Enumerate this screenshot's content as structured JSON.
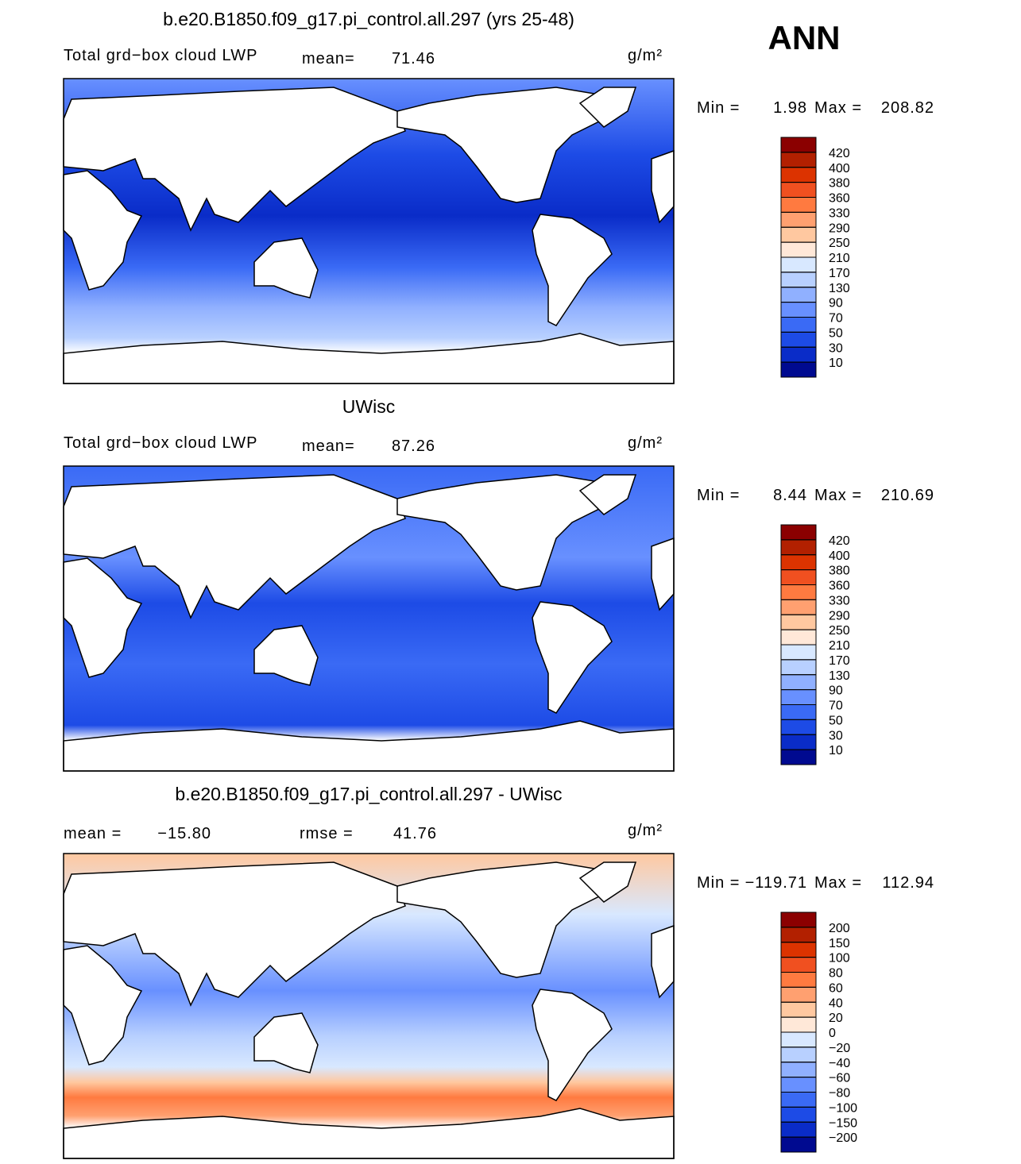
{
  "ann": "ANN",
  "panels": [
    {
      "title": "b.e20.B1850.f09_g17.pi_control.all.297 (yrs 25-48)",
      "left_label": "Total grd−box cloud LWP",
      "stat1_label": "mean=",
      "stat1": 71.46,
      "units": "g/m²",
      "min_label": "Min =",
      "min": 1.98,
      "max_label": "Max =",
      "max": 208.82,
      "levels": [
        420,
        400,
        380,
        360,
        330,
        290,
        250,
        210,
        170,
        130,
        90,
        70,
        50,
        30,
        10
      ],
      "colors": [
        "#8b0000",
        "#b22000",
        "#dc3300",
        "#f05020",
        "#ff7a40",
        "#ffa070",
        "#ffc8a0",
        "#ffe8d8",
        "#d8e8ff",
        "#b8d0ff",
        "#90b0ff",
        "#6890ff",
        "#3a6af5",
        "#1d4be6",
        "#0a2cc8",
        "#000a90"
      ]
    },
    {
      "title": "UWisc",
      "left_label": "Total grd−box cloud LWP",
      "stat1_label": "mean=",
      "stat1": 87.26,
      "units": "g/m²",
      "min_label": "Min =",
      "min": 8.44,
      "max_label": "Max =",
      "max": 210.69,
      "levels": [
        420,
        400,
        380,
        360,
        330,
        290,
        250,
        210,
        170,
        130,
        90,
        70,
        50,
        30,
        10
      ],
      "colors": [
        "#8b0000",
        "#b22000",
        "#dc3300",
        "#f05020",
        "#ff7a40",
        "#ffa070",
        "#ffc8a0",
        "#ffe8d8",
        "#d8e8ff",
        "#b8d0ff",
        "#90b0ff",
        "#6890ff",
        "#3a6af5",
        "#1d4be6",
        "#0a2cc8",
        "#000a90"
      ]
    },
    {
      "title": "b.e20.B1850.f09_g17.pi_control.all.297 - UWisc",
      "stat1_label": "mean =",
      "stat1": {
        "value": -15.8,
        "label": "−15.80"
      },
      "stat2_label": "rmse =",
      "stat2": 41.76,
      "units": "g/m²",
      "min_label": "Min =",
      "min": {
        "value": -119.71,
        "label": "−119.71"
      },
      "max_label": "Max =",
      "max": 112.94,
      "levels": [
        200,
        150,
        100,
        80,
        60,
        40,
        20,
        0,
        {
          "value": -20,
          "label": "−20"
        },
        {
          "value": -40,
          "label": "−40"
        },
        {
          "value": -60,
          "label": "−60"
        },
        {
          "value": -80,
          "label": "−80"
        },
        {
          "value": -100,
          "label": "−100"
        },
        {
          "value": -150,
          "label": "−150"
        },
        {
          "value": -200,
          "label": "−200"
        }
      ],
      "colors": [
        "#8b0000",
        "#b22000",
        "#dc3300",
        "#f05020",
        "#ff7a40",
        "#ffa070",
        "#ffc8a0",
        "#ffe8d8",
        "#d8e8ff",
        "#b8d0ff",
        "#90b0ff",
        "#6890ff",
        "#3a6af5",
        "#1d4be6",
        "#0a2cc8",
        "#000a90"
      ]
    }
  ]
}
